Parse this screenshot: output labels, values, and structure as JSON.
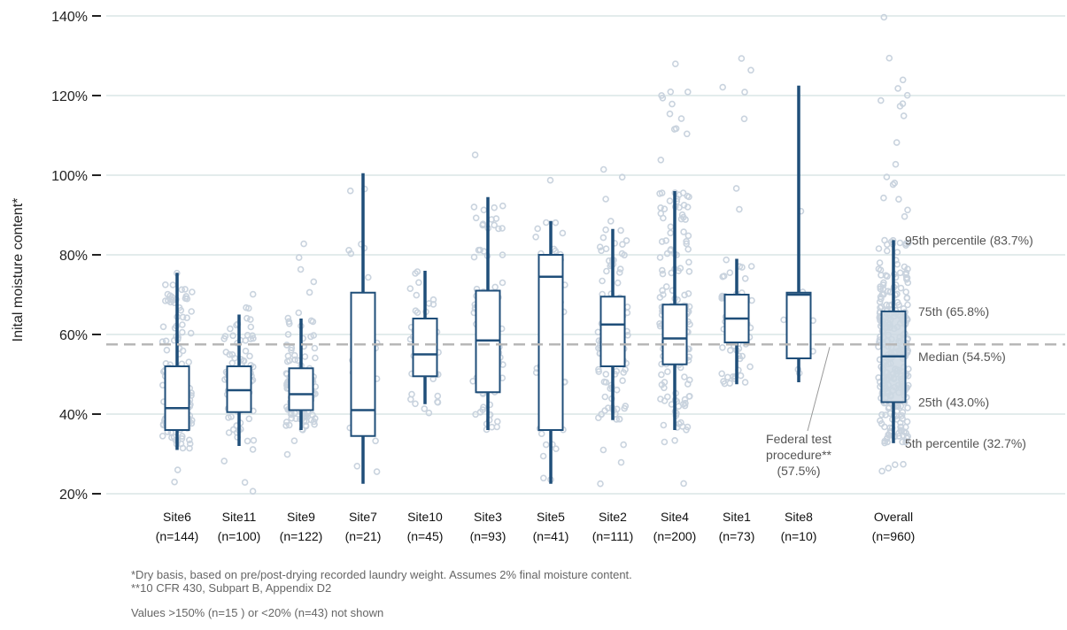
{
  "chart_data": {
    "type": "box",
    "ylabel": "Inital moisture content*",
    "yticks": [
      "20%",
      "40%",
      "60%",
      "80%",
      "100%",
      "120%",
      "140%"
    ],
    "ylim": [
      20,
      140
    ],
    "grid": true,
    "categories": [
      {
        "name": "Site6",
        "n": "(n=144)",
        "whislo": 31,
        "q1": 36,
        "med": 41.5,
        "q3": 52,
        "whishi": 75.5,
        "count": 144,
        "lo": 21,
        "hi": 82
      },
      {
        "name": "Site11",
        "n": "(n=100)",
        "whislo": 32,
        "q1": 40.5,
        "med": 46,
        "q3": 52,
        "whishi": 65,
        "count": 100,
        "lo": 20,
        "hi": 72
      },
      {
        "name": "Site9",
        "n": "(n=122)",
        "whislo": 36,
        "q1": 41,
        "med": 45,
        "q3": 51.5,
        "whishi": 64,
        "count": 122,
        "lo": 29,
        "hi": 85
      },
      {
        "name": "Site7",
        "n": "(n=21)",
        "whislo": 22.5,
        "q1": 34.5,
        "med": 41,
        "q3": 70.5,
        "whishi": 100.5,
        "count": 21,
        "lo": 22,
        "hi": 102
      },
      {
        "name": "Site10",
        "n": "(n=45)",
        "whislo": 42.5,
        "q1": 49.5,
        "med": 55,
        "q3": 64,
        "whishi": 76,
        "count": 45,
        "lo": 40,
        "hi": 78
      },
      {
        "name": "Site3",
        "n": "(n=93)",
        "whislo": 36,
        "q1": 45.5,
        "med": 58.5,
        "q3": 71,
        "whishi": 94.5,
        "count": 93,
        "lo": 22,
        "hi": 110
      },
      {
        "name": "Site5",
        "n": "(n=41)",
        "whislo": 22.5,
        "q1": 36,
        "med": 74.5,
        "q3": 80,
        "whishi": 88.5,
        "count": 41,
        "lo": 21,
        "hi": 105
      },
      {
        "name": "Site2",
        "n": "(n=111)",
        "whislo": 38.5,
        "q1": 52,
        "med": 62.5,
        "q3": 69.5,
        "whishi": 86.5,
        "count": 111,
        "lo": 21,
        "hi": 106
      },
      {
        "name": "Site4",
        "n": "(n=200)",
        "whislo": 36,
        "q1": 52.5,
        "med": 59,
        "q3": 67.5,
        "whishi": 96,
        "count": 200,
        "lo": 21,
        "hi": 131
      },
      {
        "name": "Site1",
        "n": "(n=73)",
        "whislo": 47.5,
        "q1": 58,
        "med": 64,
        "q3": 70,
        "whishi": 79,
        "count": 73,
        "lo": 41,
        "hi": 135
      },
      {
        "name": "Site8",
        "n": "(n=10)",
        "whislo": 48,
        "q1": 54,
        "med": 70,
        "q3": 70.5,
        "whishi": 122.5,
        "count": 10,
        "lo": 48,
        "hi": 122
      },
      {
        "name": "Overall",
        "n": "(n=960)",
        "whislo": 32.7,
        "q1": 43.0,
        "med": 54.5,
        "q3": 65.8,
        "whishi": 83.7,
        "count": 300,
        "lo": 20,
        "hi": 140
      }
    ],
    "reference_line": {
      "value": 57.5,
      "label": [
        "Federal test",
        "procedure**",
        "(57.5%)"
      ]
    },
    "overall_annotations": [
      "95th percentile (83.7%)",
      "75th (65.8%)",
      "Median (54.5%)",
      "25th (43.0%)",
      "5th percentile (32.7%)"
    ],
    "colors": {
      "box": "#1f4e79",
      "points": "#c9d3de",
      "grid": "#e3ecec",
      "refline": "#b7b7b7",
      "box_fill": "#ffffff",
      "overall_fill": "#cdd8e3"
    }
  },
  "footnotes": {
    "line1": "*Dry basis, based on pre/post-drying recorded laundry weight. Assumes 2% final moisture content.",
    "line2": "**10 CFR 430, Subpart B, Appendix D2",
    "line3": "Values >150% (n=15 ) or <20% (n=43) not shown"
  }
}
